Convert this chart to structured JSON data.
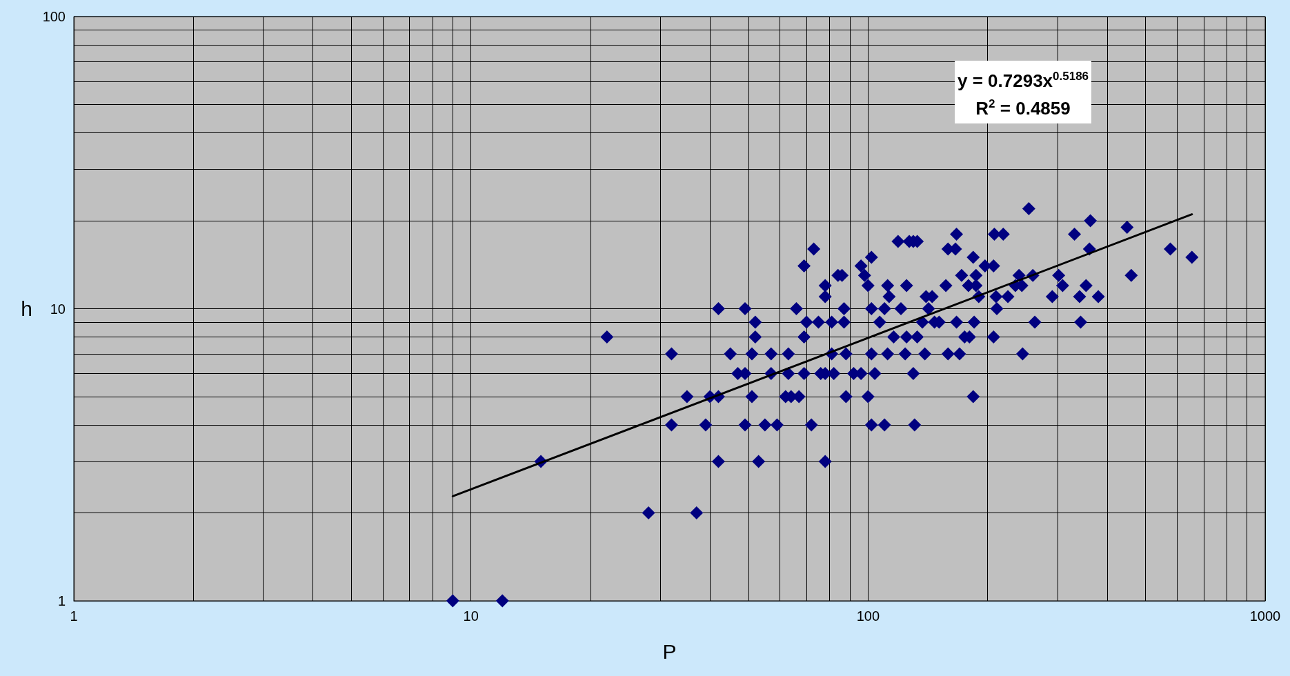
{
  "chart_data": {
    "type": "scatter",
    "xlabel": "P",
    "ylabel": "h",
    "log": "xy",
    "grid": true,
    "marker": "diamond",
    "xlim": [
      1,
      1000
    ],
    "xticks": [
      1,
      10,
      100,
      1000
    ],
    "ylim": [
      1,
      100
    ],
    "yticks": [
      1,
      10,
      100
    ],
    "annotations": [
      "y = 0.7293x$^{0.5186}$",
      "R$^{2}$ = 0.4859"
    ],
    "series": [
      {
        "color": "#000080",
        "x": [
          9,
          12,
          15,
          22,
          28,
          32,
          32,
          35,
          37,
          39,
          40,
          42,
          42,
          42,
          45,
          47,
          49,
          49,
          49,
          51,
          51,
          52,
          52,
          53,
          55,
          57,
          57,
          59,
          62,
          63,
          63,
          64,
          66,
          67,
          69,
          69,
          69,
          70,
          72,
          73,
          75,
          76,
          78,
          78,
          78,
          78,
          81,
          81,
          82,
          84,
          86,
          87,
          87,
          88,
          88,
          92,
          96,
          96,
          98,
          100,
          100,
          102,
          102,
          102,
          102,
          104,
          107,
          110,
          110,
          112,
          112,
          113,
          116,
          119,
          121,
          125,
          125,
          124,
          127,
          130,
          130,
          131,
          133,
          133,
          137,
          139,
          140,
          142,
          145,
          147,
          151,
          157,
          159,
          159,
          166,
          167,
          167,
          170,
          172,
          175,
          179,
          180,
          184,
          184,
          185,
          187,
          187,
          190,
          197,
          207,
          207,
          208,
          210,
          211,
          219,
          225,
          235,
          240,
          245,
          244,
          254,
          260,
          263,
          291,
          302,
          309,
          331,
          341,
          343,
          354,
          361,
          363,
          380,
          449,
          460,
          577,
          654
        ],
        "values": [
          1,
          1,
          3,
          8,
          2,
          7,
          4,
          5,
          2,
          4,
          5,
          10,
          3,
          5,
          7,
          6,
          10,
          4,
          6,
          5,
          7,
          9,
          8,
          3,
          4,
          6,
          7,
          4,
          5,
          7,
          6,
          5,
          10,
          5,
          14,
          8,
          6,
          9,
          4,
          16,
          9,
          6,
          12,
          11,
          3,
          6,
          7,
          9,
          6,
          13,
          13,
          10,
          9,
          5,
          7,
          6,
          14,
          6,
          13,
          12,
          5,
          10,
          7,
          4,
          15,
          6,
          9,
          10,
          4,
          12,
          7,
          11,
          8,
          17,
          10,
          12,
          8,
          7,
          17,
          6,
          17,
          4,
          17,
          8,
          9,
          7,
          11,
          10,
          11,
          9,
          9,
          12,
          16,
          7,
          16,
          18,
          9,
          7,
          13,
          8,
          12,
          8,
          15,
          5,
          9,
          12,
          13,
          11,
          14,
          8,
          14,
          18,
          11,
          10,
          18,
          11,
          12,
          13,
          7,
          12,
          22,
          13,
          9,
          11,
          13,
          12,
          18,
          11,
          9,
          12,
          16,
          20,
          11,
          19,
          13,
          16,
          15
        ]
      },
      {
        "type": "line",
        "color": "#000000",
        "marker": "none",
        "x": [
          9,
          100,
          654
        ],
        "values": [
          2.28,
          7.94,
          21.04
        ]
      }
    ]
  }
}
